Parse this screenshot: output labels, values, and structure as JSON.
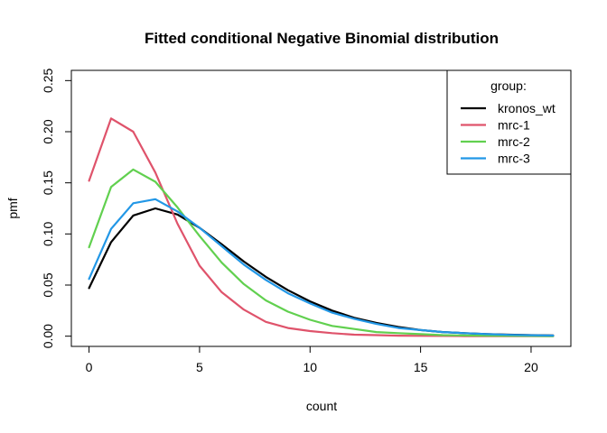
{
  "chart_data": {
    "type": "line",
    "title": "Fitted conditional Negative Binomial distribution",
    "xlabel": "count",
    "ylabel": "pmf",
    "xlim": [
      -0.8,
      21.8
    ],
    "ylim": [
      -0.01,
      0.26
    ],
    "xticks": [
      0,
      5,
      10,
      15,
      20
    ],
    "yticks": [
      0.0,
      0.05,
      0.1,
      0.15,
      0.2,
      0.25
    ],
    "ytick_labels": [
      "0.00",
      "0.05",
      "0.10",
      "0.15",
      "0.20",
      "0.25"
    ],
    "legend": {
      "title": "group:",
      "placement": "top-right"
    },
    "x": [
      0,
      1,
      2,
      3,
      4,
      5,
      6,
      7,
      8,
      9,
      10,
      11,
      12,
      13,
      14,
      15,
      16,
      17,
      18,
      19,
      20,
      21
    ],
    "series": [
      {
        "name": "kronos_wt",
        "color": "#000000",
        "values": [
          0.047,
          0.092,
          0.118,
          0.125,
          0.119,
          0.106,
          0.09,
          0.073,
          0.058,
          0.045,
          0.034,
          0.025,
          0.018,
          0.013,
          0.009,
          0.006,
          0.004,
          0.003,
          0.002,
          0.0015,
          0.001,
          0.0007
        ]
      },
      {
        "name": "mrc-1",
        "color": "#DF536B",
        "values": [
          0.152,
          0.213,
          0.2,
          0.16,
          0.11,
          0.069,
          0.043,
          0.026,
          0.014,
          0.008,
          0.005,
          0.003,
          0.0015,
          0.001,
          0.0005,
          0.0003,
          0.0002,
          0.0001,
          0.0001,
          0,
          0,
          0
        ]
      },
      {
        "name": "mrc-2",
        "color": "#61D04F",
        "values": [
          0.087,
          0.146,
          0.163,
          0.151,
          0.126,
          0.098,
          0.072,
          0.051,
          0.035,
          0.024,
          0.016,
          0.01,
          0.007,
          0.004,
          0.003,
          0.002,
          0.001,
          0.0007,
          0.0004,
          0.0003,
          0.0002,
          0.0001
        ]
      },
      {
        "name": "mrc-3",
        "color": "#2297E6",
        "values": [
          0.056,
          0.105,
          0.13,
          0.134,
          0.122,
          0.106,
          0.088,
          0.07,
          0.055,
          0.042,
          0.032,
          0.023,
          0.017,
          0.012,
          0.008,
          0.006,
          0.004,
          0.003,
          0.002,
          0.0013,
          0.0009,
          0.0006
        ]
      }
    ]
  }
}
